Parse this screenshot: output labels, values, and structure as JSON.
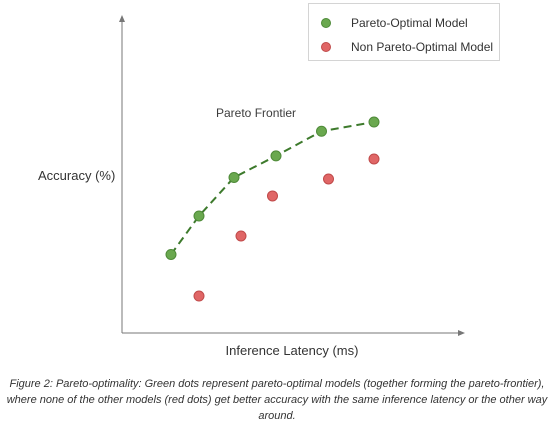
{
  "chart_data": {
    "type": "scatter",
    "title": "",
    "xlabel": "Inference Latency (ms)",
    "ylabel": "Accuracy (%)",
    "xlim": [
      0,
      10
    ],
    "ylim": [
      0,
      10
    ],
    "grid": false,
    "legend_position": "top-right",
    "annotations": [
      "Pareto Frontier"
    ],
    "series": [
      {
        "name": "Pareto-Optimal Model",
        "color": "#6aa84f",
        "line": "dashed",
        "points": [
          [
            1.4,
            2.55
          ],
          [
            2.2,
            3.8
          ],
          [
            3.2,
            5.05
          ],
          [
            4.4,
            5.75
          ],
          [
            5.7,
            6.55
          ],
          [
            7.2,
            6.85
          ]
        ]
      },
      {
        "name": "Non Pareto-Optimal Model",
        "color": "#e06666",
        "points": [
          [
            2.2,
            1.2
          ],
          [
            3.4,
            3.15
          ],
          [
            4.3,
            4.45
          ],
          [
            5.9,
            5.0
          ],
          [
            7.2,
            5.65
          ]
        ]
      }
    ]
  },
  "legend": {
    "items": [
      {
        "label": "Pareto-Optimal Model",
        "color": "#6aa84f"
      },
      {
        "label": "Non Pareto-Optimal Model",
        "color": "#e06666"
      }
    ]
  },
  "caption": "Figure 2: Pareto-optimality: Green dots represent pareto-optimal models (together forming the pareto-frontier), where none of the other models (red dots) get better accuracy with the same inference latency or the other way around."
}
